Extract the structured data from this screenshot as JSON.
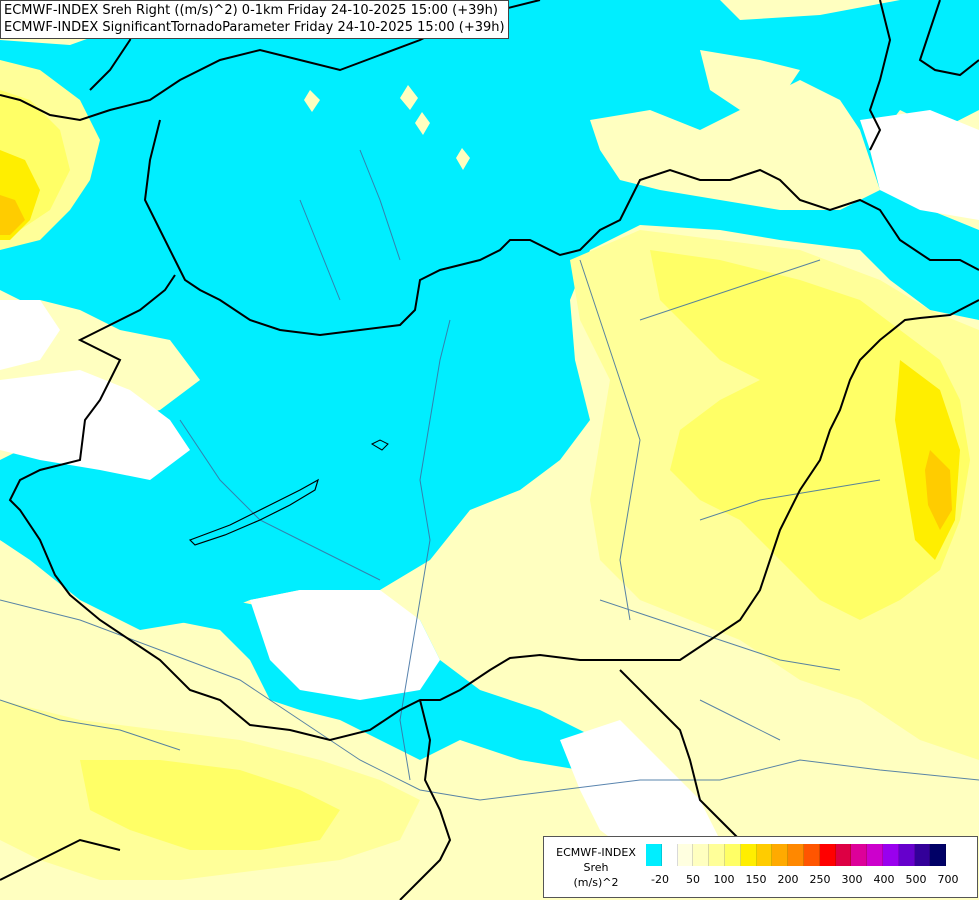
{
  "header": {
    "line1": "ECMWF-INDEX Sreh Right ((m/s)^2) 0-1km Friday 24-10-2025 15:00 (+39h)",
    "line2": "ECMWF-INDEX SignificantTornadoParameter Friday 24-10-2025 15:00 (+39h)"
  },
  "map": {
    "colors": {
      "cyan": "#00eeff",
      "white": "#ffffff",
      "pale_yellow": "#ffffc0",
      "light_yellow": "#ffff99",
      "yellow": "#ffff66",
      "deep_yellow": "#ffee00",
      "orange_yellow": "#ffcc00",
      "border": "#000000",
      "river": "#3c6ea0"
    }
  },
  "legend": {
    "title_lines": [
      "ECMWF-INDEX",
      "Sreh",
      "(m/s)^2"
    ],
    "colors": [
      "#00eeff",
      "#ffffff",
      "#ffffe0",
      "#ffffc0",
      "#ffff99",
      "#ffff66",
      "#ffee00",
      "#ffcc00",
      "#ffaa00",
      "#ff8800",
      "#ff5500",
      "#ff0000",
      "#dd0044",
      "#dd0099",
      "#cc00cc",
      "#9900ee",
      "#6600cc",
      "#330099",
      "#000066"
    ],
    "ticks": [
      "-20",
      "50",
      "100",
      "150",
      "200",
      "250",
      "300",
      "400",
      "500",
      "700"
    ]
  }
}
